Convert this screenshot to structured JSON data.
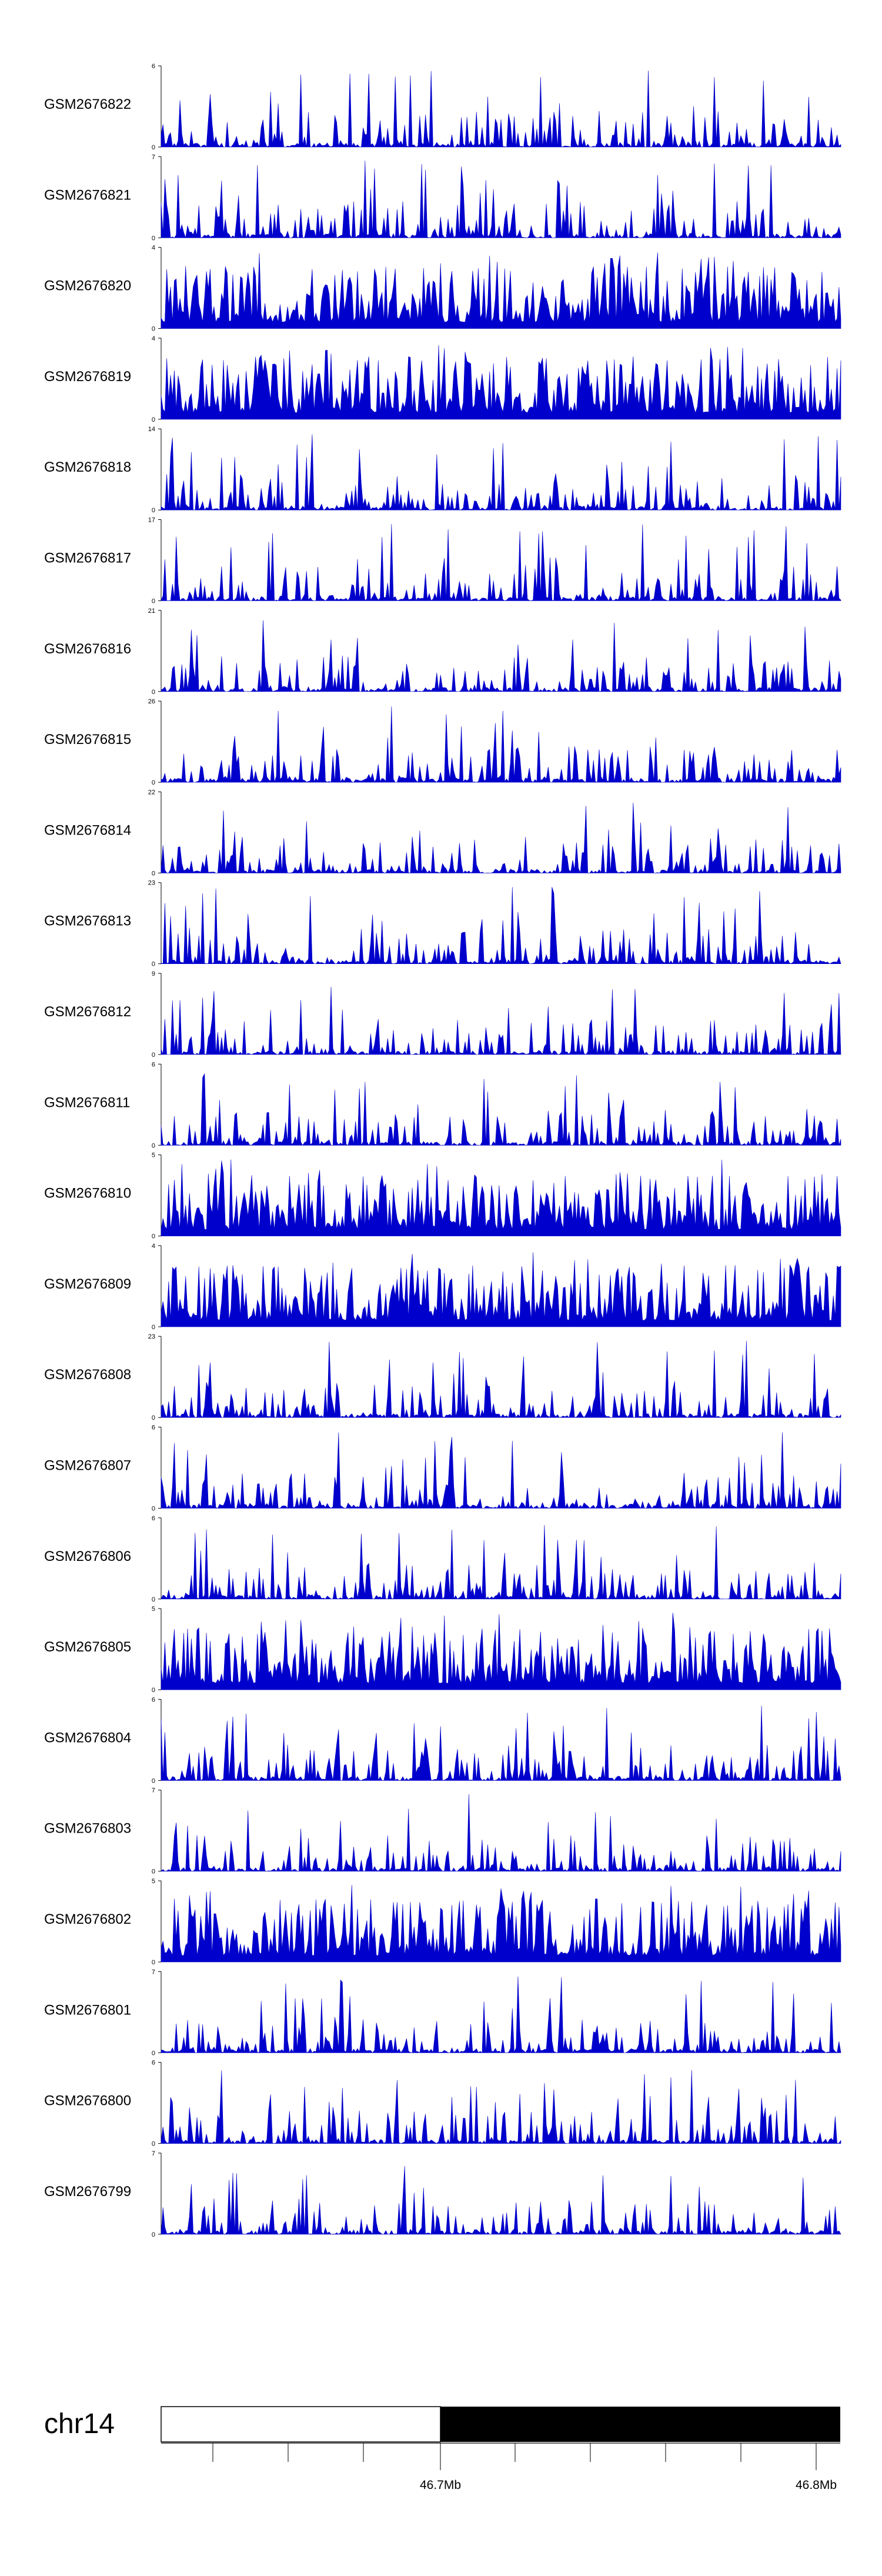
{
  "chart_data": {
    "type": "area",
    "colors": {
      "signal": "#0000cc",
      "axis": "#000000",
      "ideogram_fill": "#000000",
      "ideogram_empty": "#ffffff"
    },
    "tracks": [
      {
        "name": "GSM2676822",
        "ylim": [
          0,
          6
        ]
      },
      {
        "name": "GSM2676821",
        "ylim": [
          0,
          7
        ]
      },
      {
        "name": "GSM2676820",
        "ylim": [
          0,
          4
        ]
      },
      {
        "name": "GSM2676819",
        "ylim": [
          0,
          4
        ]
      },
      {
        "name": "GSM2676818",
        "ylim": [
          0,
          14
        ]
      },
      {
        "name": "GSM2676817",
        "ylim": [
          0,
          17
        ]
      },
      {
        "name": "GSM2676816",
        "ylim": [
          0,
          21
        ]
      },
      {
        "name": "GSM2676815",
        "ylim": [
          0,
          26
        ]
      },
      {
        "name": "GSM2676814",
        "ylim": [
          0,
          22
        ]
      },
      {
        "name": "GSM2676813",
        "ylim": [
          0,
          23
        ]
      },
      {
        "name": "GSM2676812",
        "ylim": [
          0,
          9
        ]
      },
      {
        "name": "GSM2676811",
        "ylim": [
          0,
          6
        ]
      },
      {
        "name": "GSM2676810",
        "ylim": [
          0,
          5
        ]
      },
      {
        "name": "GSM2676809",
        "ylim": [
          0,
          4
        ]
      },
      {
        "name": "GSM2676808",
        "ylim": [
          0,
          23
        ]
      },
      {
        "name": "GSM2676807",
        "ylim": [
          0,
          6
        ]
      },
      {
        "name": "GSM2676806",
        "ylim": [
          0,
          6
        ]
      },
      {
        "name": "GSM2676805",
        "ylim": [
          0,
          5
        ]
      },
      {
        "name": "GSM2676804",
        "ylim": [
          0,
          6
        ]
      },
      {
        "name": "GSM2676803",
        "ylim": [
          0,
          7
        ]
      },
      {
        "name": "GSM2676802",
        "ylim": [
          0,
          5
        ]
      },
      {
        "name": "GSM2676801",
        "ylim": [
          0,
          7
        ]
      },
      {
        "name": "GSM2676800",
        "ylim": [
          0,
          6
        ]
      },
      {
        "name": "GSM2676799",
        "ylim": [
          0,
          7
        ]
      }
    ],
    "chromosome": "chr14",
    "x_ticks": [
      "46.7Mb",
      "46.8Mb"
    ]
  }
}
